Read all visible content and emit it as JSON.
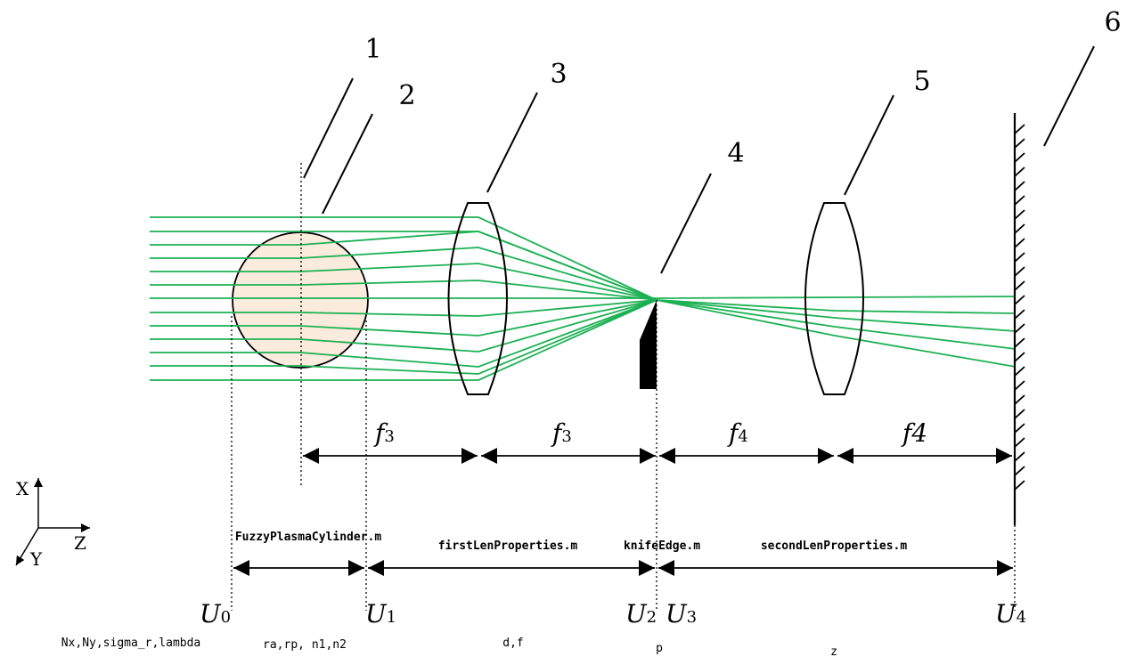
{
  "callouts": [
    "1",
    "2",
    "3",
    "4",
    "5",
    "6"
  ],
  "focal_labels": [
    {
      "base": "f",
      "sub": "3"
    },
    {
      "base": "f",
      "sub": "3"
    },
    {
      "base": "f",
      "sub": "4"
    },
    {
      "base": "f",
      "sub": "4"
    }
  ],
  "modules": [
    "FuzzyPlasmaCylinder.m",
    "firstLenProperties.m",
    "knifeEdge.m",
    "secondLenProperties.m"
  ],
  "planes": [
    {
      "base": "U",
      "sub": "0"
    },
    {
      "base": "U",
      "sub": "1"
    },
    {
      "base": "U",
      "sub": "2"
    },
    {
      "base": "U",
      "sub": "3"
    },
    {
      "base": "U",
      "sub": "4"
    }
  ],
  "params": [
    "Nx,Ny,sigma_r,lambda",
    "ra,rp, n1,n2",
    "d,f",
    "p",
    "z"
  ],
  "axes": {
    "x": "X",
    "y": "Y",
    "z": "Z"
  },
  "colors": {
    "ray": "#1db054",
    "plasma_fill": "#fbebdc",
    "line": "#000000"
  }
}
